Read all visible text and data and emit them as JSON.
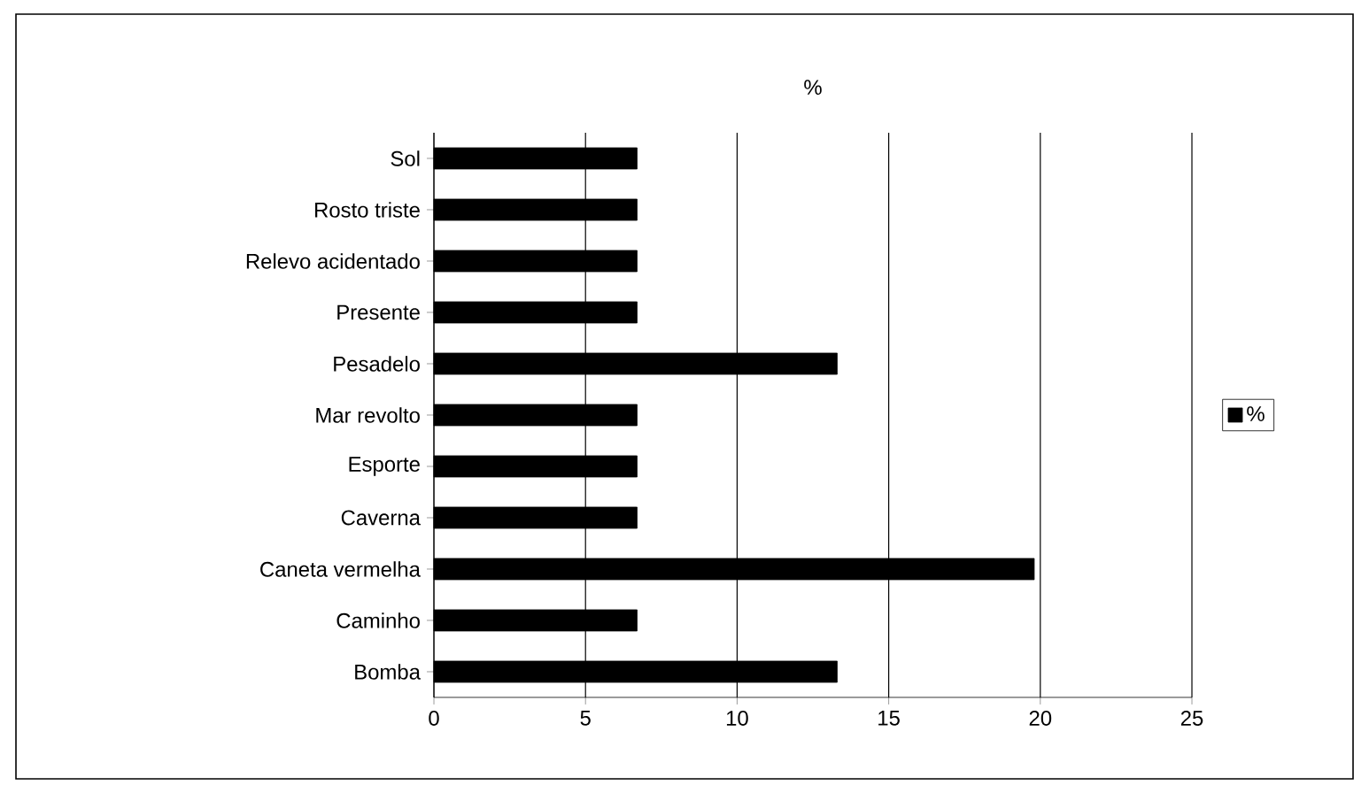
{
  "chart_data": {
    "type": "bar",
    "orientation": "horizontal",
    "title": "%",
    "categories": [
      "Sol",
      "Rosto triste",
      "Relevo acidentado",
      "Presente",
      "Pesadelo",
      "Mar revolto",
      "Esporte",
      "Caverna",
      "Caneta vermelha",
      "Caminho",
      "Bomba"
    ],
    "series": [
      {
        "name": "%",
        "color": "#000000",
        "values": [
          6.7,
          6.7,
          6.7,
          6.7,
          13.3,
          6.7,
          6.7,
          6.7,
          19.8,
          6.7,
          13.3
        ]
      }
    ],
    "xlim": [
      0,
      25
    ],
    "xticks": [
      0,
      5,
      10,
      15,
      20,
      25
    ],
    "grid": "x",
    "legend": "right"
  }
}
